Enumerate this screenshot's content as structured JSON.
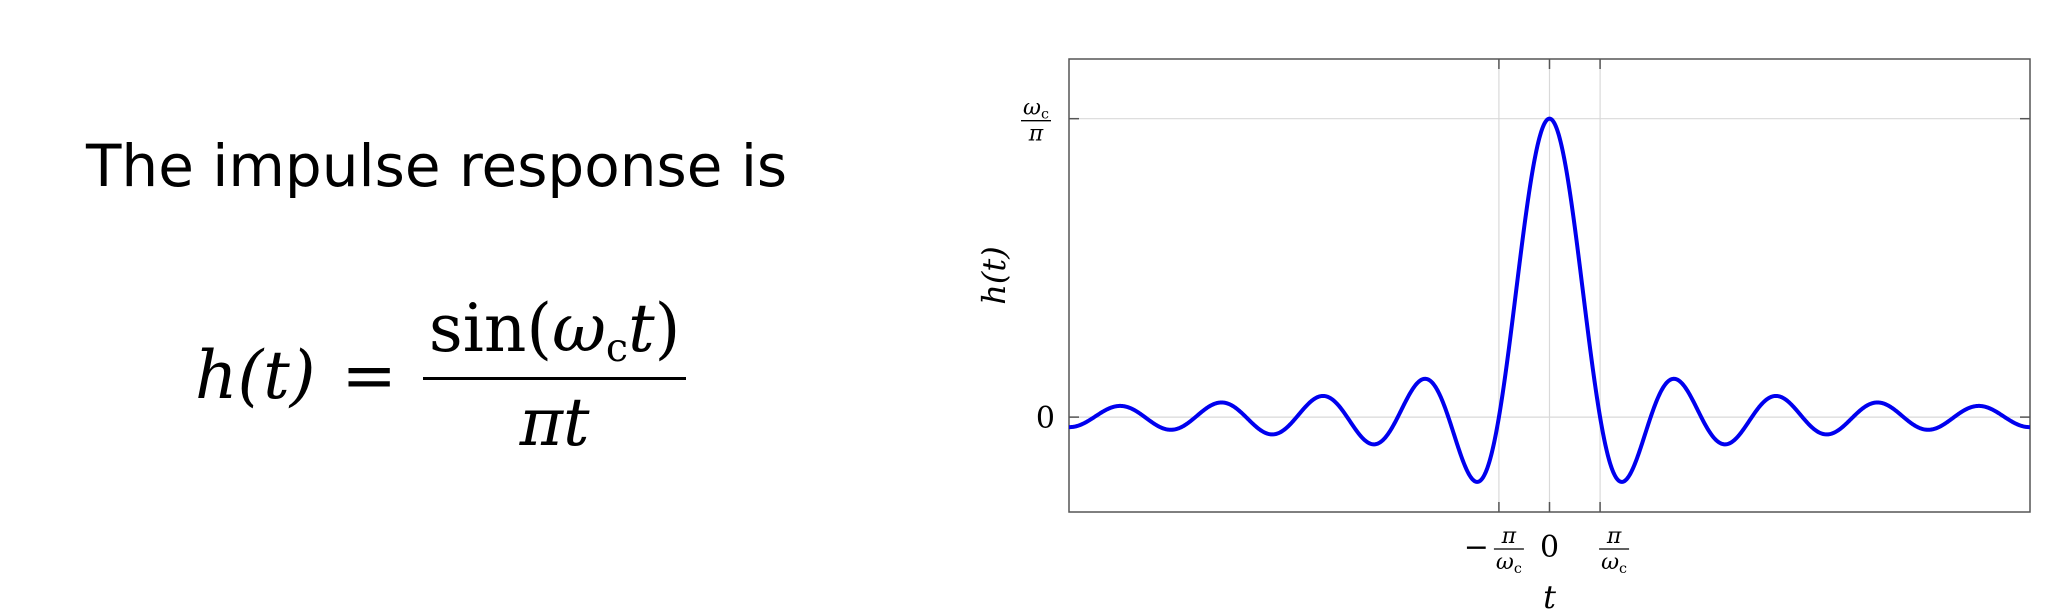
{
  "intro_text": "The impulse response is",
  "formula": {
    "lhs": "h(t)",
    "equals": "=",
    "numerator_fn": "sin(",
    "numerator_omega": "ω",
    "numerator_sub": "c",
    "numerator_t": "t",
    "numerator_close": ")",
    "denominator": "πt"
  },
  "colors": {
    "curve": "#0000ee",
    "grid": "#d9d9d9",
    "axis": "#555555"
  },
  "chart_data": {
    "type": "line",
    "function": "sin(omega_c t)/(pi t)",
    "omega_c": 1,
    "xlim_in_units_of_pi_over_omega_c": [
      -9.5,
      9.5
    ],
    "ylim": [
      -0.318,
      1.2
    ],
    "xlabel": "t",
    "ylabel": "h(t)",
    "x_ticks": [
      {
        "value": -1,
        "label_minus": "−",
        "label_num": "π",
        "label_den": "ω",
        "label_den_sub": "c"
      },
      {
        "value": 0,
        "label": "0"
      },
      {
        "value": 1,
        "label_num": "π",
        "label_den": "ω",
        "label_den_sub": "c"
      }
    ],
    "y_ticks": [
      {
        "value": 0,
        "label": "0"
      },
      {
        "value": 1,
        "label_num": "ω",
        "label_num_sub": "c",
        "label_den": "π"
      }
    ],
    "grid": true,
    "series": [
      {
        "values_at_ticks": {
          "0": 1
        }
      }
    ]
  }
}
